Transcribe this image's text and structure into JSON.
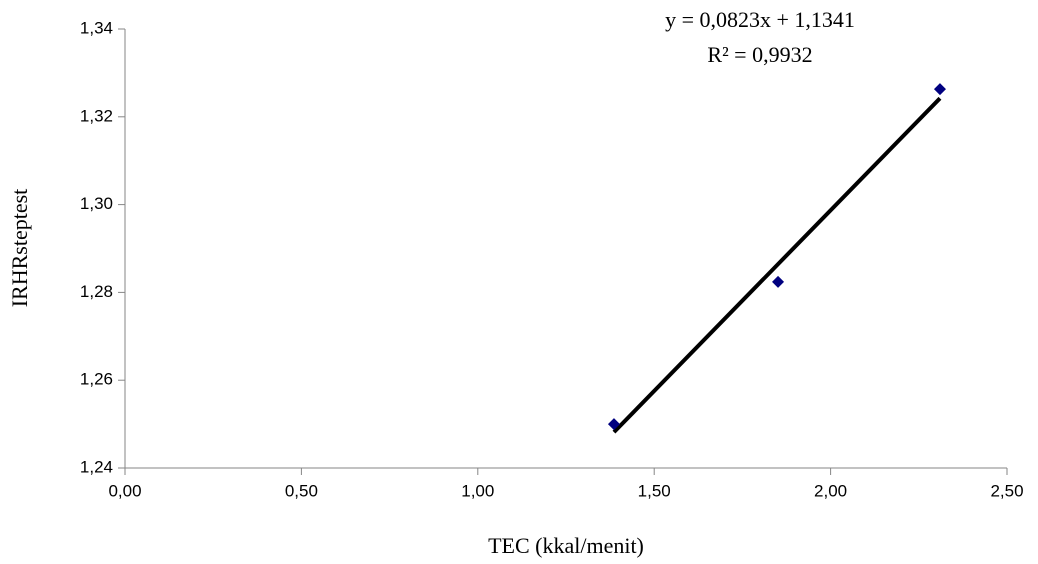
{
  "chart_data": {
    "type": "scatter",
    "x_label": "TEC (kkal/menit)",
    "y_label": "IRHRsteptest",
    "series": [
      {
        "name": "IRHRsteptest",
        "color": "#000080",
        "x": [
          1.386,
          1.851,
          2.31
        ],
        "values": [
          1.25,
          1.2824,
          1.3263
        ]
      }
    ],
    "trendline": {
      "slope": 0.0823,
      "intercept": 1.1341,
      "color": "#000000",
      "equation": "y = 0,0823x + 1,1341",
      "r_squared": "R² = 0,9932"
    },
    "xlim": [
      0,
      2.5
    ],
    "xticks": [
      {
        "value": 0,
        "label": "0,00"
      },
      {
        "value": 0.5,
        "label": "0,50"
      },
      {
        "value": 1,
        "label": "1,00"
      },
      {
        "value": 1.5,
        "label": "1,50"
      },
      {
        "value": 2,
        "label": "2,00"
      },
      {
        "value": 2.5,
        "label": "2,50"
      }
    ],
    "ylim": [
      1.24,
      1.34
    ],
    "yticks": [
      {
        "value": 1.24,
        "label": "1,24"
      },
      {
        "value": 1.26,
        "label": "1,26"
      },
      {
        "value": 1.28,
        "label": "1,28"
      },
      {
        "value": 1.3,
        "label": "1,30"
      },
      {
        "value": 1.32,
        "label": "1,32"
      },
      {
        "value": 1.34,
        "label": "1,34"
      }
    ],
    "grid": false
  }
}
